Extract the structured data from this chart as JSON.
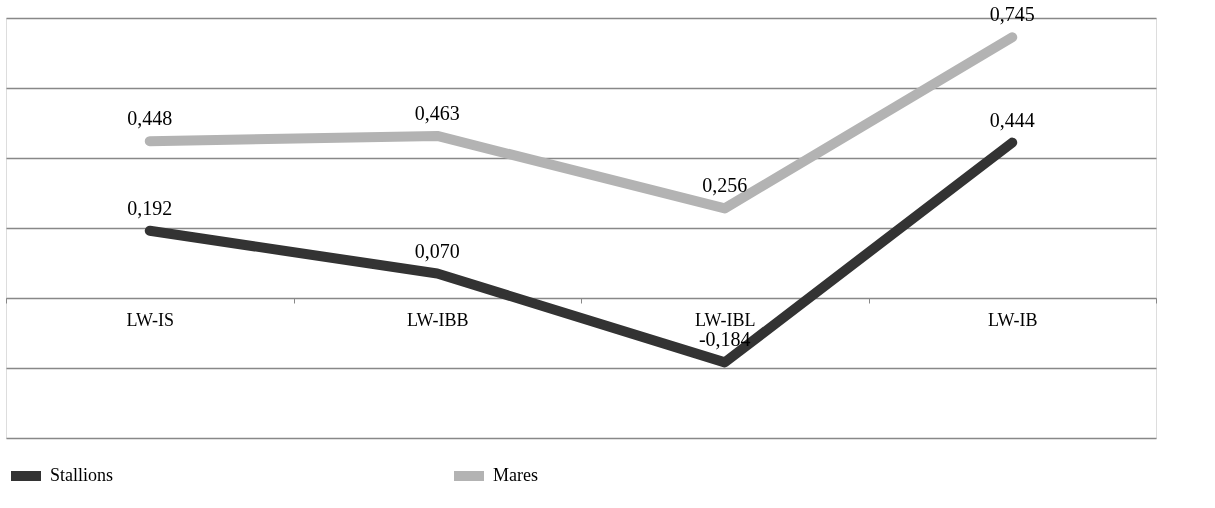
{
  "chart_data": {
    "type": "line",
    "categories": [
      "LW-IS",
      "LW-IBB",
      "LW-IBL",
      "LW-IB"
    ],
    "series": [
      {
        "name": "Stallions",
        "color": "#333333",
        "values": [
          0.192,
          0.07,
          -0.184,
          0.444
        ],
        "value_labels": [
          "0,192",
          "0,070",
          "-0,184",
          "0,444"
        ]
      },
      {
        "name": "Mares",
        "color": "#b3b3b3",
        "values": [
          0.448,
          0.463,
          0.256,
          0.745
        ],
        "value_labels": [
          "0,448",
          "0,463",
          "0,256",
          "0,745"
        ]
      }
    ],
    "ylim": [
      -0.4,
      0.8
    ],
    "yticks": [
      {
        "value": -0.4,
        "label": null
      },
      {
        "value": -0.2,
        "label": null
      },
      {
        "value": 0,
        "label": null
      },
      {
        "value": 0.2,
        "label": null
      },
      {
        "value": 0.4,
        "label": null
      },
      {
        "value": 0.6,
        "label": null
      },
      {
        "value": 0.8,
        "label": null
      }
    ],
    "grid": "y",
    "tick_labels": "x",
    "legend": "bottom",
    "marker": "none",
    "line_style": "solid"
  }
}
